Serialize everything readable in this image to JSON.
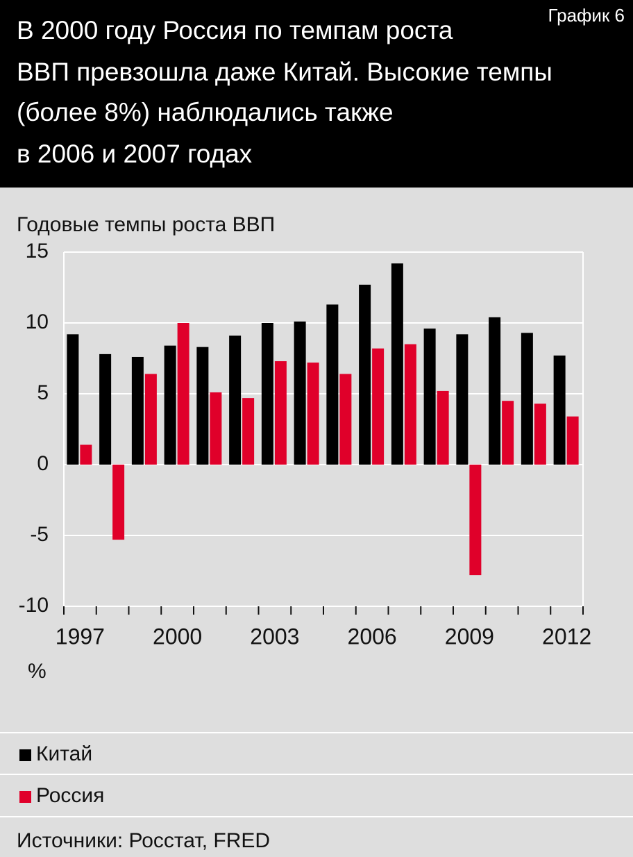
{
  "chart_data": {
    "type": "bar",
    "label": "График 6",
    "title": [
      "В 2000 году Россия по темпам роста",
      "ВВП превзошла даже Китай. Высокие темпы",
      "(более 8%) наблюдались также",
      "в 2006 и 2007 годах"
    ],
    "ylabel": "Годовые темпы роста ВВП",
    "unit": "%",
    "source": "Источники: Росстат, FRED",
    "categories": [
      "1997",
      null,
      null,
      "2000",
      null,
      null,
      "2003",
      null,
      null,
      "2006",
      null,
      null,
      "2009",
      null,
      null,
      "2012"
    ],
    "series": [
      {
        "name": "Китай",
        "color": "#000000",
        "values": [
          9.2,
          7.8,
          7.6,
          8.4,
          8.3,
          9.1,
          10.0,
          10.1,
          11.3,
          12.7,
          14.2,
          9.6,
          9.2,
          10.4,
          9.3,
          7.7
        ]
      },
      {
        "name": "Россия",
        "color": "#e0002a",
        "values": [
          1.4,
          -5.3,
          6.4,
          10.0,
          5.1,
          4.7,
          7.3,
          7.2,
          6.4,
          8.2,
          8.5,
          5.2,
          -7.8,
          4.5,
          4.3,
          3.4
        ]
      }
    ],
    "ylim": [
      -10,
      15
    ],
    "yticks": [
      -10,
      -5,
      0,
      5,
      10,
      15
    ],
    "grid": true
  }
}
